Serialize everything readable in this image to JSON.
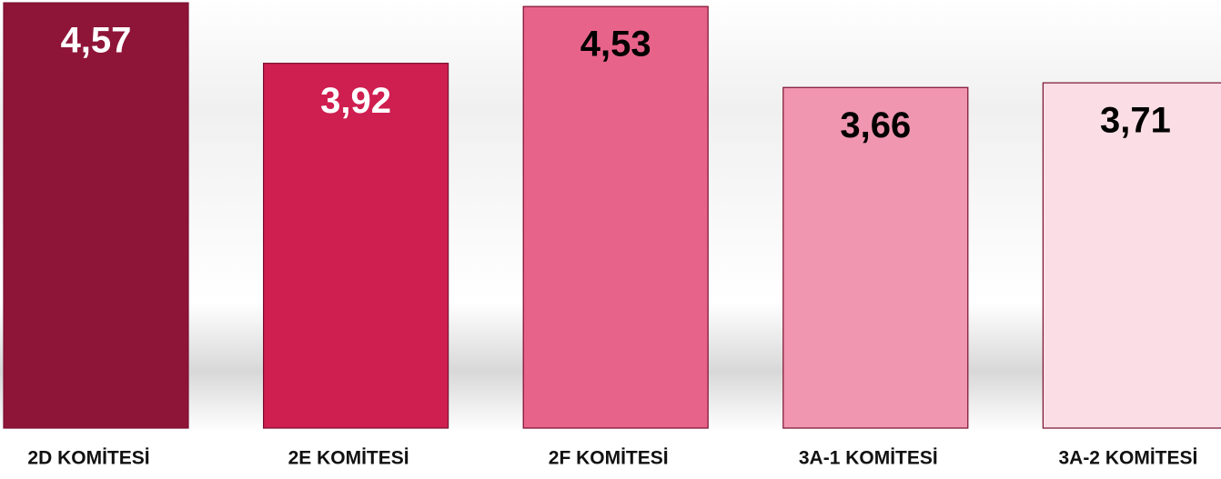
{
  "chart_data": {
    "type": "bar",
    "categories": [
      "2D KOMİTESİ",
      "2E KOMİTESİ",
      "2F KOMİTESİ",
      "3A-1 KOMİTESİ",
      "3A-2 KOMİTESİ"
    ],
    "values": [
      4.57,
      3.92,
      4.53,
      3.66,
      3.71
    ],
    "value_labels": [
      "4,57",
      "3,92",
      "4,53",
      "3,66",
      "3,71"
    ],
    "colors": [
      "#8e1538",
      "#cf1e50",
      "#e8638a",
      "#f096b0",
      "#fadde5"
    ],
    "ylim": [
      0,
      4.6
    ]
  }
}
